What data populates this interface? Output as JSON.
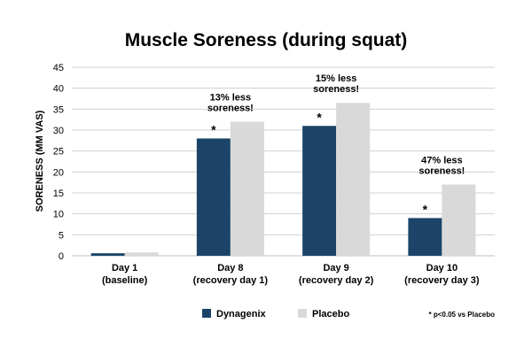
{
  "chart_data": {
    "type": "bar",
    "title": "Muscle Soreness (during squat)",
    "ylabel": "SORENESS (MM VAS)",
    "xlabel": "",
    "ylim": [
      0,
      45
    ],
    "yticks": [
      "0",
      "5",
      "10",
      "15",
      "20",
      "25",
      "30",
      "35",
      "40",
      "45"
    ],
    "grid": true,
    "categories": [
      [
        "Day 1",
        "(baseline)"
      ],
      [
        "Day 8",
        "(recovery day 1)"
      ],
      [
        "Day 9",
        "(recovery day 2)"
      ],
      [
        "Day 10",
        "(recovery day 3)"
      ]
    ],
    "series": [
      {
        "name": "Dynagenix",
        "color": "#1b4468",
        "values": [
          0.6,
          28,
          31,
          9
        ]
      },
      {
        "name": "Placebo",
        "color": "#d9d9d9",
        "values": [
          0.8,
          32,
          36.5,
          17
        ]
      }
    ],
    "annotations": [
      {
        "category": 1,
        "lines": [
          "13% less",
          "soreness!"
        ]
      },
      {
        "category": 2,
        "lines": [
          "15% less",
          "soreness!"
        ]
      },
      {
        "category": 3,
        "lines": [
          "47% less",
          "soreness!"
        ]
      }
    ],
    "significance": {
      "marker": "*",
      "categories": [
        1,
        2,
        3
      ],
      "series": 0
    },
    "legend_position": "bottom-center",
    "footnote": "* p<0.05 vs Placebo"
  }
}
